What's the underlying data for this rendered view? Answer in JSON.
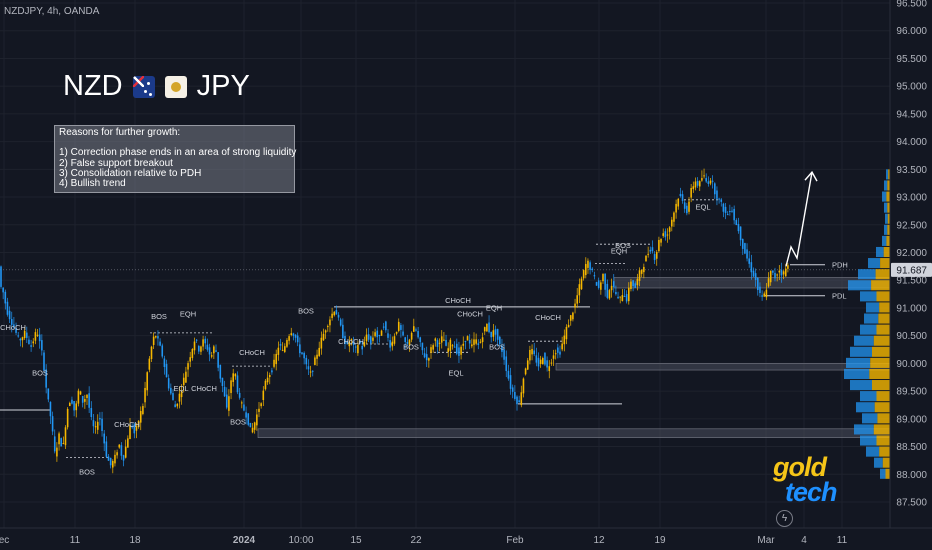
{
  "header": {
    "symbol_line": "NZDJPY, 4h, OANDA"
  },
  "title": {
    "base": "NZD",
    "quote": "JPY",
    "base_flag_icon": "new-zealand-flag-icon",
    "quote_flag_icon": "japan-flag-icon"
  },
  "reasons": {
    "heading": "Reasons for further growth:",
    "items": [
      "1) Correction phase ends in an area of strong liquidity",
      "2) False support breakout",
      "3) Consolidation relative to PDH",
      "4) Bullish trend"
    ]
  },
  "branding": {
    "part1": "gold",
    "part2": "tech",
    "part1_color": "#f5c518",
    "part2_color": "#1e90ff"
  },
  "colors": {
    "background": "#131722",
    "bull": "#f5b700",
    "bear": "#2196f3",
    "zone": "#4a4e5c",
    "price_label_bg": "#d1d4dc"
  },
  "chart_data": {
    "type": "candlestick",
    "symbol": "NZDJPY",
    "timeframe": "4h",
    "source": "OANDA",
    "x_ticks": [
      "ec",
      "11",
      "18",
      "2024",
      "10:00",
      "15",
      "22",
      "Feb",
      "12",
      "19",
      "Mar",
      "4",
      "11"
    ],
    "y_ticks": [
      87.5,
      88.0,
      88.5,
      89.0,
      89.5,
      90.0,
      90.5,
      91.0,
      91.5,
      92.0,
      92.5,
      93.0,
      93.5,
      94.0,
      94.5,
      95.0,
      95.5,
      96.0,
      96.5
    ],
    "ylim": [
      87.25,
      96.65
    ],
    "last_price": 91.687,
    "path": [
      [
        0,
        91.45
      ],
      [
        4,
        91.3
      ],
      [
        8,
        90.95
      ],
      [
        14,
        90.7
      ],
      [
        20,
        90.4
      ],
      [
        26,
        90.55
      ],
      [
        32,
        90.3
      ],
      [
        38,
        90.6
      ],
      [
        44,
        90.1
      ],
      [
        48,
        89.45
      ],
      [
        52,
        89.0
      ],
      [
        56,
        88.35
      ],
      [
        60,
        88.7
      ],
      [
        64,
        88.45
      ],
      [
        68,
        89.15
      ],
      [
        72,
        89.4
      ],
      [
        76,
        89.1
      ],
      [
        80,
        89.55
      ],
      [
        84,
        89.3
      ],
      [
        88,
        89.45
      ],
      [
        92,
        89.0
      ],
      [
        96,
        88.75
      ],
      [
        100,
        89.1
      ],
      [
        104,
        88.7
      ],
      [
        108,
        88.3
      ],
      [
        112,
        88.15
      ],
      [
        116,
        88.3
      ],
      [
        120,
        88.55
      ],
      [
        124,
        88.25
      ],
      [
        128,
        88.6
      ],
      [
        132,
        88.95
      ],
      [
        136,
        88.7
      ],
      [
        140,
        89.0
      ],
      [
        144,
        89.25
      ],
      [
        148,
        89.8
      ],
      [
        152,
        90.25
      ],
      [
        156,
        90.55
      ],
      [
        160,
        90.35
      ],
      [
        164,
        90.1
      ],
      [
        168,
        89.7
      ],
      [
        172,
        89.45
      ],
      [
        176,
        89.2
      ],
      [
        180,
        89.4
      ],
      [
        184,
        89.65
      ],
      [
        188,
        89.95
      ],
      [
        192,
        90.2
      ],
      [
        196,
        90.45
      ],
      [
        200,
        90.25
      ],
      [
        204,
        90.4
      ],
      [
        208,
        90.3
      ],
      [
        212,
        90.1
      ],
      [
        216,
        90.35
      ],
      [
        220,
        89.85
      ],
      [
        224,
        89.55
      ],
      [
        228,
        89.15
      ],
      [
        232,
        89.7
      ],
      [
        236,
        89.85
      ],
      [
        240,
        89.35
      ],
      [
        244,
        89.2
      ],
      [
        248,
        89.05
      ],
      [
        252,
        88.75
      ],
      [
        256,
        88.95
      ],
      [
        260,
        89.2
      ],
      [
        264,
        89.45
      ],
      [
        268,
        89.75
      ],
      [
        272,
        89.85
      ],
      [
        276,
        90.05
      ],
      [
        280,
        90.35
      ],
      [
        284,
        90.2
      ],
      [
        288,
        90.45
      ],
      [
        292,
        90.6
      ],
      [
        296,
        90.5
      ],
      [
        300,
        90.25
      ],
      [
        304,
        90.15
      ],
      [
        308,
        89.9
      ],
      [
        312,
        89.8
      ],
      [
        316,
        90.05
      ],
      [
        320,
        90.3
      ],
      [
        324,
        90.5
      ],
      [
        328,
        90.7
      ],
      [
        332,
        90.85
      ],
      [
        336,
        91.0
      ],
      [
        340,
        90.75
      ],
      [
        344,
        90.5
      ],
      [
        348,
        90.3
      ],
      [
        352,
        90.45
      ],
      [
        356,
        90.2
      ],
      [
        360,
        90.4
      ],
      [
        364,
        90.25
      ],
      [
        368,
        90.55
      ],
      [
        372,
        90.35
      ],
      [
        376,
        90.6
      ],
      [
        380,
        90.4
      ],
      [
        384,
        90.75
      ],
      [
        388,
        90.5
      ],
      [
        392,
        90.3
      ],
      [
        396,
        90.55
      ],
      [
        400,
        90.7
      ],
      [
        404,
        90.45
      ],
      [
        408,
        90.3
      ],
      [
        412,
        90.55
      ],
      [
        416,
        90.65
      ],
      [
        420,
        90.4
      ],
      [
        424,
        90.2
      ],
      [
        428,
        90.05
      ],
      [
        432,
        90.25
      ],
      [
        436,
        90.45
      ],
      [
        440,
        90.3
      ],
      [
        444,
        90.5
      ],
      [
        448,
        90.2
      ],
      [
        452,
        90.4
      ],
      [
        456,
        90.3
      ],
      [
        460,
        90.15
      ],
      [
        464,
        90.35
      ],
      [
        468,
        90.5
      ],
      [
        472,
        90.25
      ],
      [
        476,
        90.45
      ],
      [
        480,
        90.3
      ],
      [
        484,
        90.55
      ],
      [
        488,
        90.7
      ],
      [
        492,
        90.5
      ],
      [
        496,
        90.6
      ],
      [
        500,
        90.35
      ],
      [
        504,
        90.2
      ],
      [
        508,
        89.85
      ],
      [
        512,
        89.55
      ],
      [
        516,
        89.4
      ],
      [
        520,
        89.25
      ],
      [
        524,
        89.7
      ],
      [
        528,
        90.05
      ],
      [
        532,
        90.25
      ],
      [
        536,
        90.1
      ],
      [
        540,
        89.95
      ],
      [
        544,
        90.15
      ],
      [
        548,
        89.9
      ],
      [
        552,
        90.05
      ],
      [
        556,
        90.25
      ],
      [
        560,
        90.15
      ],
      [
        564,
        90.4
      ],
      [
        568,
        90.65
      ],
      [
        572,
        90.85
      ],
      [
        576,
        91.05
      ],
      [
        580,
        91.35
      ],
      [
        584,
        91.6
      ],
      [
        588,
        91.85
      ],
      [
        592,
        91.7
      ],
      [
        596,
        91.5
      ],
      [
        600,
        91.35
      ],
      [
        604,
        91.6
      ],
      [
        608,
        91.2
      ],
      [
        612,
        91.45
      ],
      [
        616,
        91.3
      ],
      [
        620,
        91.1
      ],
      [
        624,
        91.3
      ],
      [
        628,
        91.15
      ],
      [
        632,
        91.5
      ],
      [
        636,
        91.35
      ],
      [
        640,
        91.6
      ],
      [
        644,
        91.75
      ],
      [
        648,
        91.95
      ],
      [
        652,
        92.1
      ],
      [
        656,
        91.9
      ],
      [
        660,
        92.2
      ],
      [
        664,
        92.35
      ],
      [
        668,
        92.3
      ],
      [
        672,
        92.55
      ],
      [
        676,
        92.8
      ],
      [
        680,
        93.05
      ],
      [
        684,
        92.9
      ],
      [
        688,
        92.75
      ],
      [
        692,
        93.1
      ],
      [
        696,
        93.3
      ],
      [
        700,
        93.2
      ],
      [
        704,
        93.4
      ],
      [
        708,
        93.25
      ],
      [
        712,
        93.35
      ],
      [
        716,
        93.1
      ],
      [
        720,
        92.95
      ],
      [
        724,
        92.8
      ],
      [
        728,
        92.65
      ],
      [
        732,
        92.85
      ],
      [
        736,
        92.55
      ],
      [
        740,
        92.4
      ],
      [
        744,
        92.1
      ],
      [
        748,
        91.9
      ],
      [
        752,
        91.7
      ],
      [
        756,
        91.55
      ],
      [
        760,
        91.25
      ],
      [
        764,
        91.15
      ],
      [
        768,
        91.4
      ],
      [
        772,
        91.65
      ],
      [
        776,
        91.55
      ],
      [
        780,
        91.7
      ],
      [
        784,
        91.6
      ],
      [
        788,
        91.75
      ]
    ],
    "projection": [
      [
        786,
        91.75
      ],
      [
        791,
        92.1
      ],
      [
        797,
        91.9
      ],
      [
        812,
        93.45
      ]
    ],
    "zones": [
      {
        "x0": 258,
        "x1": 890,
        "y0": 88.82,
        "y1": 88.66
      },
      {
        "x0": 556,
        "x1": 890,
        "y0": 90.0,
        "y1": 89.88
      },
      {
        "x0": 614,
        "x1": 890,
        "y0": 91.55,
        "y1": 91.36
      }
    ],
    "levels": [
      {
        "label": "PDH",
        "price": 91.78,
        "x0": 790,
        "x1": 825,
        "label_x": 832
      },
      {
        "label": "PDL",
        "price": 91.22,
        "x0": 764,
        "x1": 825,
        "label_x": 832
      },
      {
        "label": "CHoCH",
        "price": 91.02,
        "x0": 334,
        "x1": 590,
        "label_x": 458
      },
      {
        "label": "",
        "price": 89.27,
        "x0": 518,
        "x1": 622,
        "label_x": 0
      },
      {
        "label": "",
        "price": 89.16,
        "x0": 0,
        "x1": 50,
        "label_x": 0
      }
    ],
    "dashed_levels": [
      {
        "price": 88.3,
        "x0": 66,
        "x1": 108
      },
      {
        "price": 90.55,
        "x0": 150,
        "x1": 212
      },
      {
        "price": 89.95,
        "x0": 232,
        "x1": 270
      },
      {
        "price": 90.35,
        "x0": 350,
        "x1": 392
      },
      {
        "price": 90.2,
        "x0": 430,
        "x1": 470
      },
      {
        "price": 90.4,
        "x0": 528,
        "x1": 564
      },
      {
        "price": 92.15,
        "x0": 596,
        "x1": 650
      },
      {
        "price": 92.95,
        "x0": 684,
        "x1": 720
      },
      {
        "price": 91.8,
        "x0": 595,
        "x1": 626
      }
    ],
    "annotations": [
      {
        "text": "CHoCH",
        "x": 13,
        "price": 90.6
      },
      {
        "text": "BOS",
        "x": 40,
        "price": 89.78
      },
      {
        "text": "BOS",
        "x": 87,
        "price": 88.0
      },
      {
        "text": "CHoCH",
        "x": 127,
        "price": 88.85
      },
      {
        "text": "BOS",
        "x": 159,
        "price": 90.8
      },
      {
        "text": "EQH",
        "x": 188,
        "price": 90.85
      },
      {
        "text": "EQL",
        "x": 181,
        "price": 89.5
      },
      {
        "text": "CHoCH",
        "x": 204,
        "price": 89.5
      },
      {
        "text": "BOS",
        "x": 238,
        "price": 88.9
      },
      {
        "text": "CHoCH",
        "x": 252,
        "price": 90.15
      },
      {
        "text": "BOS",
        "x": 306,
        "price": 90.9
      },
      {
        "text": "CHoCH",
        "x": 351,
        "price": 90.35
      },
      {
        "text": "BOS",
        "x": 411,
        "price": 90.25
      },
      {
        "text": "EQL",
        "x": 456,
        "price": 89.78
      },
      {
        "text": "CHoCH",
        "x": 470,
        "price": 90.85
      },
      {
        "text": "EQH",
        "x": 494,
        "price": 90.95
      },
      {
        "text": "BOS",
        "x": 497,
        "price": 90.25
      },
      {
        "text": "CHoCH",
        "x": 548,
        "price": 90.78
      },
      {
        "text": "BOS",
        "x": 623,
        "price": 92.08
      },
      {
        "text": "EQH",
        "x": 619,
        "price": 91.98
      },
      {
        "text": "EQL",
        "x": 703,
        "price": 92.78
      }
    ],
    "volume_profile_x": 890,
    "volume_profile": [
      [
        88.0,
        10
      ],
      [
        88.2,
        16
      ],
      [
        88.4,
        24
      ],
      [
        88.6,
        30
      ],
      [
        88.8,
        36
      ],
      [
        89.0,
        28
      ],
      [
        89.2,
        34
      ],
      [
        89.4,
        30
      ],
      [
        89.6,
        40
      ],
      [
        89.8,
        46
      ],
      [
        90.0,
        44
      ],
      [
        90.2,
        40
      ],
      [
        90.4,
        36
      ],
      [
        90.6,
        30
      ],
      [
        90.8,
        26
      ],
      [
        91.0,
        24
      ],
      [
        91.2,
        30
      ],
      [
        91.4,
        42
      ],
      [
        91.6,
        32
      ],
      [
        91.8,
        22
      ],
      [
        92.0,
        14
      ],
      [
        92.2,
        8
      ],
      [
        92.4,
        6
      ],
      [
        92.6,
        5
      ],
      [
        92.8,
        6
      ],
      [
        93.0,
        8
      ],
      [
        93.2,
        6
      ],
      [
        93.4,
        4
      ]
    ]
  }
}
